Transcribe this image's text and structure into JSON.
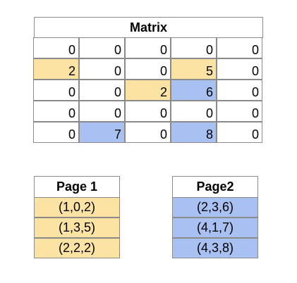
{
  "matrix": {
    "title": "Matrix",
    "rows": [
      [
        "0",
        "0",
        "0",
        "0",
        "0"
      ],
      [
        "2",
        "0",
        "0",
        "5",
        "0"
      ],
      [
        "0",
        "0",
        "2",
        "6",
        "0"
      ],
      [
        "0",
        "0",
        "0",
        "0",
        "0"
      ],
      [
        "0",
        "7",
        "0",
        "8",
        "0"
      ]
    ],
    "highlights": [
      [
        "",
        "",
        "",
        "",
        ""
      ],
      [
        "yellow",
        "",
        "",
        "yellow",
        ""
      ],
      [
        "",
        "",
        "yellow",
        "blue",
        ""
      ],
      [
        "",
        "",
        "",
        "",
        ""
      ],
      [
        "",
        "blue",
        "",
        "blue",
        ""
      ]
    ]
  },
  "page1": {
    "title": "Page 1",
    "entries": [
      "(1,0,2)",
      "(1,3,5)",
      "(2,2,2)"
    ]
  },
  "page2": {
    "title": "Page2",
    "entries": [
      "(2,3,6)",
      "(4,1,7)",
      "(4,3,8)"
    ]
  },
  "colors": {
    "yellow": "#fde3a3",
    "blue": "#a9c1f2",
    "border": "#8a8a8a"
  }
}
